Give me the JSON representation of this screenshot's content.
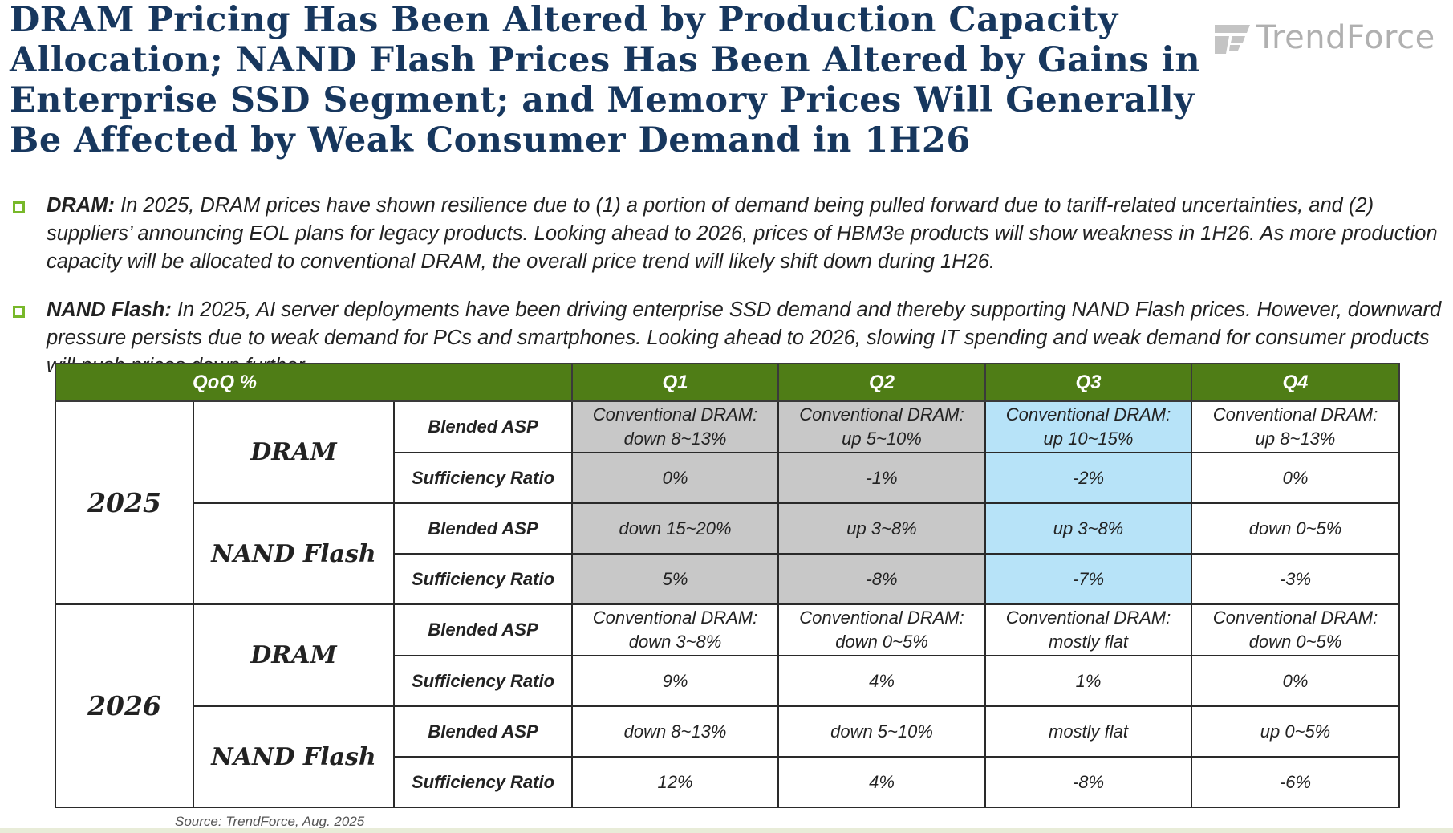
{
  "title": "DRAM Pricing Has Been Altered by Production Capacity Allocation; NAND Flash Prices Has Been Altered by Gains in Enterprise SSD Segment; and Memory Prices Will Generally Be Affected by Weak Consumer Demand in 1H26",
  "logo": {
    "text": "TrendForce",
    "icon": "trendforce-logo-icon",
    "color": "#b0b0b0"
  },
  "bullets": [
    {
      "lead": "DRAM:",
      "text": " In 2025, DRAM prices have shown resilience due to (1) a portion of demand being pulled forward due to tariff-related uncertainties, and (2) suppliers’ announcing EOL plans for legacy products. Looking ahead to 2026, prices of HBM3e products will show weakness in 1H26. As more production capacity will be allocated to conventional DRAM, the overall price trend will likely shift down during 1H26."
    },
    {
      "lead": "NAND Flash:",
      "text": " In 2025, AI server deployments have been driving enterprise SSD demand and thereby supporting NAND Flash prices. However, downward pressure persists due to weak demand for PCs and smartphones. Looking ahead to 2026, slowing IT spending and weak demand for consumer products will push prices down further."
    }
  ],
  "table": {
    "header": {
      "qoq": "QoQ %",
      "quarters": [
        "Q1",
        "Q2",
        "Q3",
        "Q4"
      ]
    },
    "years": [
      "2025",
      "2026"
    ],
    "categories": [
      "DRAM",
      "NAND Flash"
    ],
    "metrics": [
      "Blended ASP",
      "Sufficiency Ratio"
    ],
    "rows": [
      {
        "q": [
          [
            "Conventional DRAM:",
            "down 8~13%"
          ],
          [
            "Conventional DRAM:",
            "up 5~10%"
          ],
          [
            "Conventional DRAM:",
            "up 10~15%"
          ],
          [
            "Conventional DRAM:",
            "up 8~13%"
          ]
        ]
      },
      {
        "q": [
          [
            "0%"
          ],
          [
            "-1%"
          ],
          [
            "-2%"
          ],
          [
            "0%"
          ]
        ]
      },
      {
        "q": [
          [
            "down 15~20%"
          ],
          [
            "up 3~8%"
          ],
          [
            "up 3~8%"
          ],
          [
            "down 0~5%"
          ]
        ]
      },
      {
        "q": [
          [
            "5%"
          ],
          [
            "-8%"
          ],
          [
            "-7%"
          ],
          [
            "-3%"
          ]
        ]
      },
      {
        "q": [
          [
            "Conventional DRAM:",
            "down 3~8%"
          ],
          [
            "Conventional DRAM:",
            "down 0~5%"
          ],
          [
            "Conventional DRAM:",
            "mostly flat"
          ],
          [
            "Conventional DRAM:",
            "down 0~5%"
          ]
        ]
      },
      {
        "q": [
          [
            "9%"
          ],
          [
            "4%"
          ],
          [
            "1%"
          ],
          [
            "0%"
          ]
        ]
      },
      {
        "q": [
          [
            "down 8~13%"
          ],
          [
            "down 5~10%"
          ],
          [
            "mostly flat"
          ],
          [
            "up 0~5%"
          ]
        ]
      },
      {
        "q": [
          [
            "12%"
          ],
          [
            "4%"
          ],
          [
            "-8%"
          ],
          [
            "-6%"
          ]
        ]
      }
    ],
    "colors": {
      "header": "#4f7d16",
      "actual": "#c8c8c8",
      "current": "#b7e3f8"
    }
  },
  "source": "Source: TrendForce, Aug. 2025"
}
